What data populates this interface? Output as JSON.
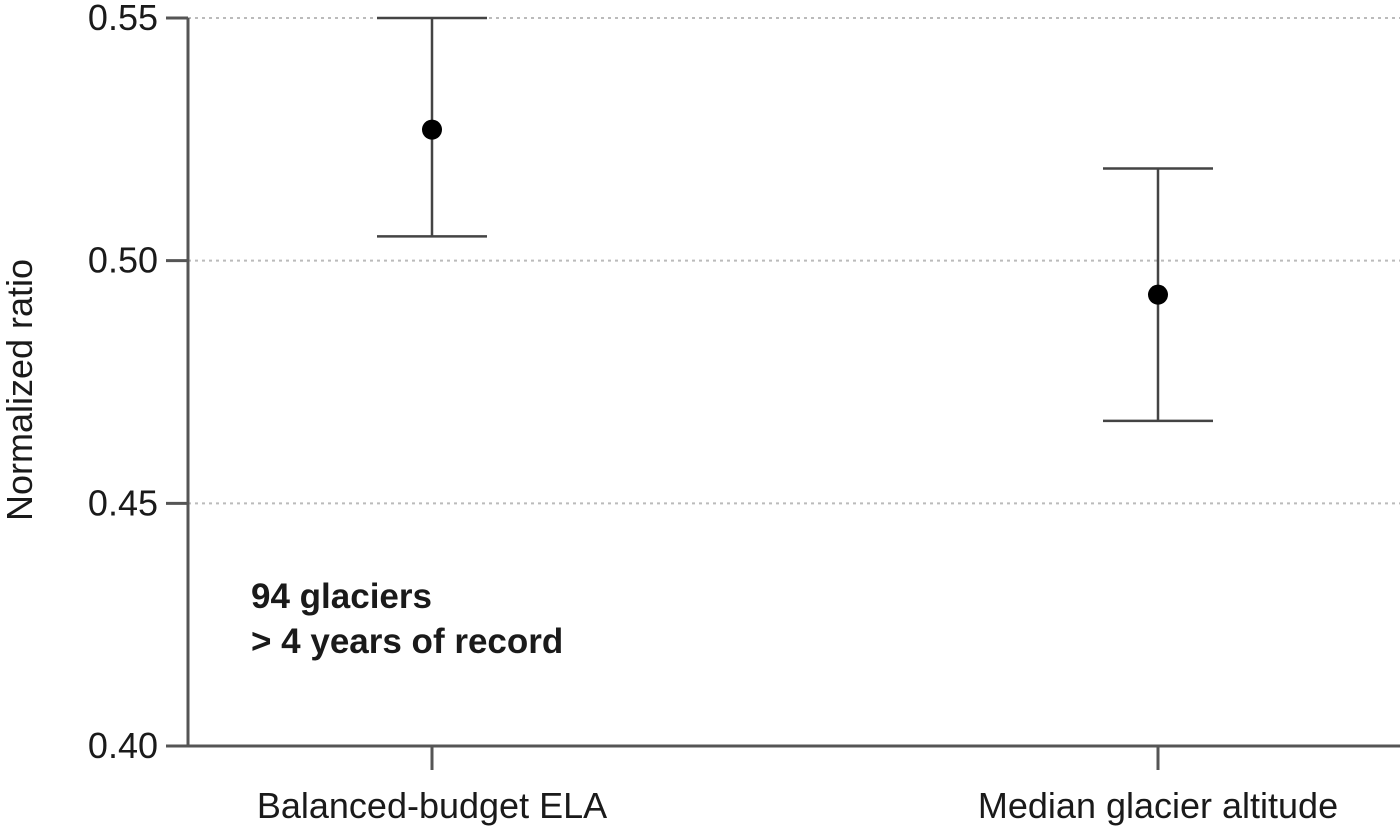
{
  "chart_data": {
    "type": "scatter",
    "ylabel": "Normalized ratio",
    "ylim": [
      0.4,
      0.55
    ],
    "yticks": [
      "0.40",
      "0.45",
      "0.50",
      "0.55"
    ],
    "categories": [
      "Balanced-budget ELA",
      "Median glacier altitude"
    ],
    "series": [
      {
        "points": [
          {
            "category": "Balanced-budget ELA",
            "value": 0.527,
            "lower": 0.505,
            "upper": 0.55
          },
          {
            "category": "Median glacier altitude",
            "value": 0.493,
            "lower": 0.467,
            "upper": 0.519
          }
        ]
      }
    ],
    "annotation": [
      "94 glaciers",
      "> 4 years of record"
    ],
    "grid": "horizontal dotted",
    "colors": {
      "axis": "#555555",
      "grid": "#bbbbbb",
      "marker": "#000000",
      "errorbar": "#444444"
    }
  }
}
